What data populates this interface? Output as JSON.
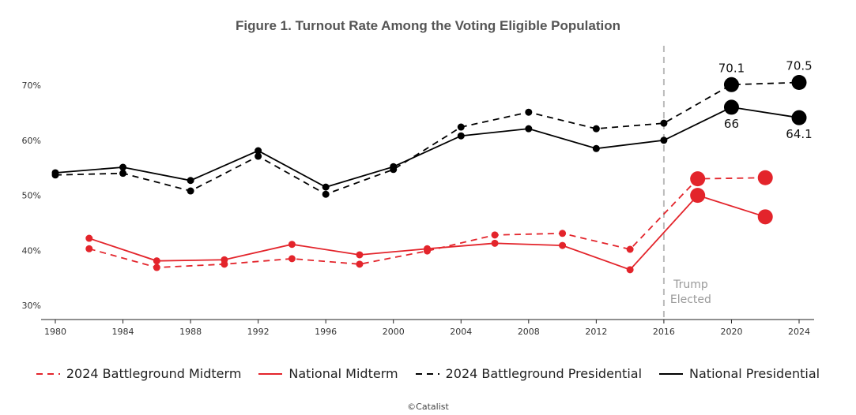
{
  "chart_data": {
    "type": "line",
    "title": "Figure 1. Turnout Rate Among the Voting Eligible Population",
    "xlabel": "",
    "ylabel": "",
    "xlim": [
      1980,
      2024
    ],
    "ylim": [
      27.5,
      74
    ],
    "x_ticks": [
      "1980",
      "1984",
      "1988",
      "1992",
      "1996",
      "2000",
      "2004",
      "2008",
      "2012",
      "2016",
      "2020",
      "2024"
    ],
    "y_ticks": [
      {
        "v": 30,
        "label": "30%"
      },
      {
        "v": 40,
        "label": "40%"
      },
      {
        "v": 50,
        "label": "50%"
      },
      {
        "v": 60,
        "label": "60%"
      },
      {
        "v": 70,
        "label": "70%"
      }
    ],
    "grid": false,
    "legend_position": "bottom",
    "series": [
      {
        "name": "2024 Battleground Midterm",
        "color": "#e3242b",
        "dash": true,
        "x": [
          1982,
          1986,
          1990,
          1994,
          1998,
          2002,
          2006,
          2010,
          2014,
          2018,
          2022
        ],
        "values": [
          40.3,
          36.9,
          37.5,
          38.5,
          37.5,
          39.9,
          42.8,
          43.1,
          40.2,
          53.0,
          53.2
        ]
      },
      {
        "name": "National Midterm",
        "color": "#e3242b",
        "dash": false,
        "x": [
          1982,
          1986,
          1990,
          1994,
          1998,
          2002,
          2006,
          2010,
          2014,
          2018,
          2022
        ],
        "values": [
          42.2,
          38.1,
          38.3,
          41.1,
          39.2,
          40.3,
          41.3,
          40.9,
          36.5,
          50.0,
          46.1
        ]
      },
      {
        "name": "2024 Battleground Presidential",
        "color": "#000000",
        "dash": true,
        "x": [
          1980,
          1984,
          1988,
          1992,
          1996,
          2000,
          2004,
          2008,
          2012,
          2016,
          2020,
          2024
        ],
        "values": [
          53.7,
          54.0,
          50.8,
          57.1,
          50.2,
          54.7,
          62.4,
          65.1,
          62.1,
          63.1,
          70.1,
          70.5
        ]
      },
      {
        "name": "National Presidential",
        "color": "#000000",
        "dash": false,
        "x": [
          1980,
          1984,
          1988,
          1992,
          1996,
          2000,
          2004,
          2008,
          2012,
          2016,
          2020,
          2024
        ],
        "values": [
          54.1,
          55.1,
          52.7,
          58.1,
          51.5,
          55.2,
          60.8,
          62.1,
          58.5,
          60.0,
          66.0,
          64.1
        ]
      }
    ],
    "data_labels": [
      {
        "x": 2020,
        "value": 70.1,
        "text": "70.1",
        "pos": "above"
      },
      {
        "x": 2024,
        "value": 70.5,
        "text": "70.5",
        "pos": "above"
      },
      {
        "x": 2020,
        "value": 66.0,
        "text": "66",
        "pos": "below"
      },
      {
        "x": 2024,
        "value": 64.1,
        "text": "64.1",
        "pos": "below"
      }
    ],
    "annotation": {
      "x": 2016,
      "text_lines": [
        "Trump",
        "Elected"
      ]
    }
  },
  "credit": "©Catalist"
}
